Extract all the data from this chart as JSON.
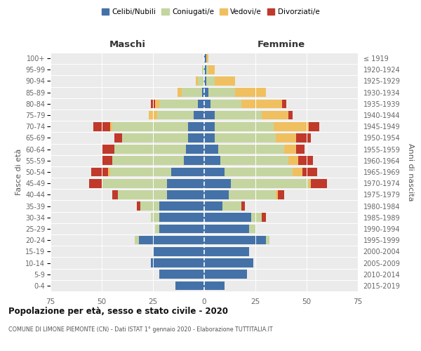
{
  "age_groups": [
    "0-4",
    "5-9",
    "10-14",
    "15-19",
    "20-24",
    "25-29",
    "30-34",
    "35-39",
    "40-44",
    "45-49",
    "50-54",
    "55-59",
    "60-64",
    "65-69",
    "70-74",
    "75-79",
    "80-84",
    "85-89",
    "90-94",
    "95-99",
    "100+"
  ],
  "birth_years": [
    "2015-2019",
    "2010-2014",
    "2005-2009",
    "2000-2004",
    "1995-1999",
    "1990-1994",
    "1985-1989",
    "1980-1984",
    "1975-1979",
    "1970-1974",
    "1965-1969",
    "1960-1964",
    "1955-1959",
    "1950-1954",
    "1945-1949",
    "1940-1944",
    "1935-1939",
    "1930-1934",
    "1925-1929",
    "1920-1924",
    "≤ 1919"
  ],
  "colors": {
    "celibi": "#4472a8",
    "coniugati": "#c5d5a0",
    "vedovi": "#f0c060",
    "divorziati": "#c0392b",
    "background": "#ebebeb"
  },
  "maschi": {
    "celibi": [
      14,
      22,
      26,
      25,
      32,
      22,
      22,
      22,
      18,
      18,
      16,
      10,
      9,
      8,
      8,
      5,
      3,
      1,
      0,
      0,
      0
    ],
    "coniugati": [
      0,
      0,
      0,
      0,
      2,
      2,
      4,
      9,
      24,
      32,
      30,
      35,
      35,
      32,
      37,
      18,
      19,
      10,
      3,
      1,
      0
    ],
    "vedovi": [
      0,
      0,
      0,
      0,
      0,
      0,
      0,
      0,
      0,
      0,
      1,
      0,
      0,
      0,
      1,
      4,
      2,
      2,
      1,
      0,
      0
    ],
    "divorziati": [
      0,
      0,
      0,
      0,
      0,
      0,
      0,
      2,
      3,
      6,
      8,
      5,
      6,
      4,
      8,
      0,
      2,
      0,
      0,
      0,
      0
    ]
  },
  "femmine": {
    "celibi": [
      10,
      21,
      24,
      22,
      30,
      22,
      23,
      9,
      12,
      13,
      10,
      8,
      7,
      5,
      5,
      5,
      3,
      2,
      1,
      1,
      1
    ],
    "coniugati": [
      0,
      0,
      0,
      0,
      2,
      3,
      5,
      9,
      23,
      38,
      33,
      33,
      32,
      30,
      29,
      23,
      15,
      13,
      4,
      1,
      0
    ],
    "vedovi": [
      0,
      0,
      0,
      0,
      0,
      0,
      0,
      0,
      1,
      1,
      5,
      5,
      6,
      10,
      17,
      13,
      20,
      15,
      10,
      3,
      1
    ],
    "divorziati": [
      0,
      0,
      0,
      0,
      0,
      0,
      2,
      2,
      3,
      8,
      7,
      7,
      4,
      7,
      5,
      2,
      2,
      0,
      0,
      0,
      0
    ]
  },
  "xlim": 75,
  "title": "Popolazione per età, sesso e stato civile - 2020",
  "subtitle": "COMUNE DI LIMONE PIEMONTE (CN) - Dati ISTAT 1° gennaio 2020 - Elaborazione TUTTITALIA.IT",
  "ylabel": "Fasce di età",
  "ylabel_right": "Anni di nascita",
  "xlabel_maschi": "Maschi",
  "xlabel_femmine": "Femmine",
  "legend_labels": [
    "Celibi/Nubili",
    "Coniugati/e",
    "Vedovi/e",
    "Divorziati/e"
  ]
}
